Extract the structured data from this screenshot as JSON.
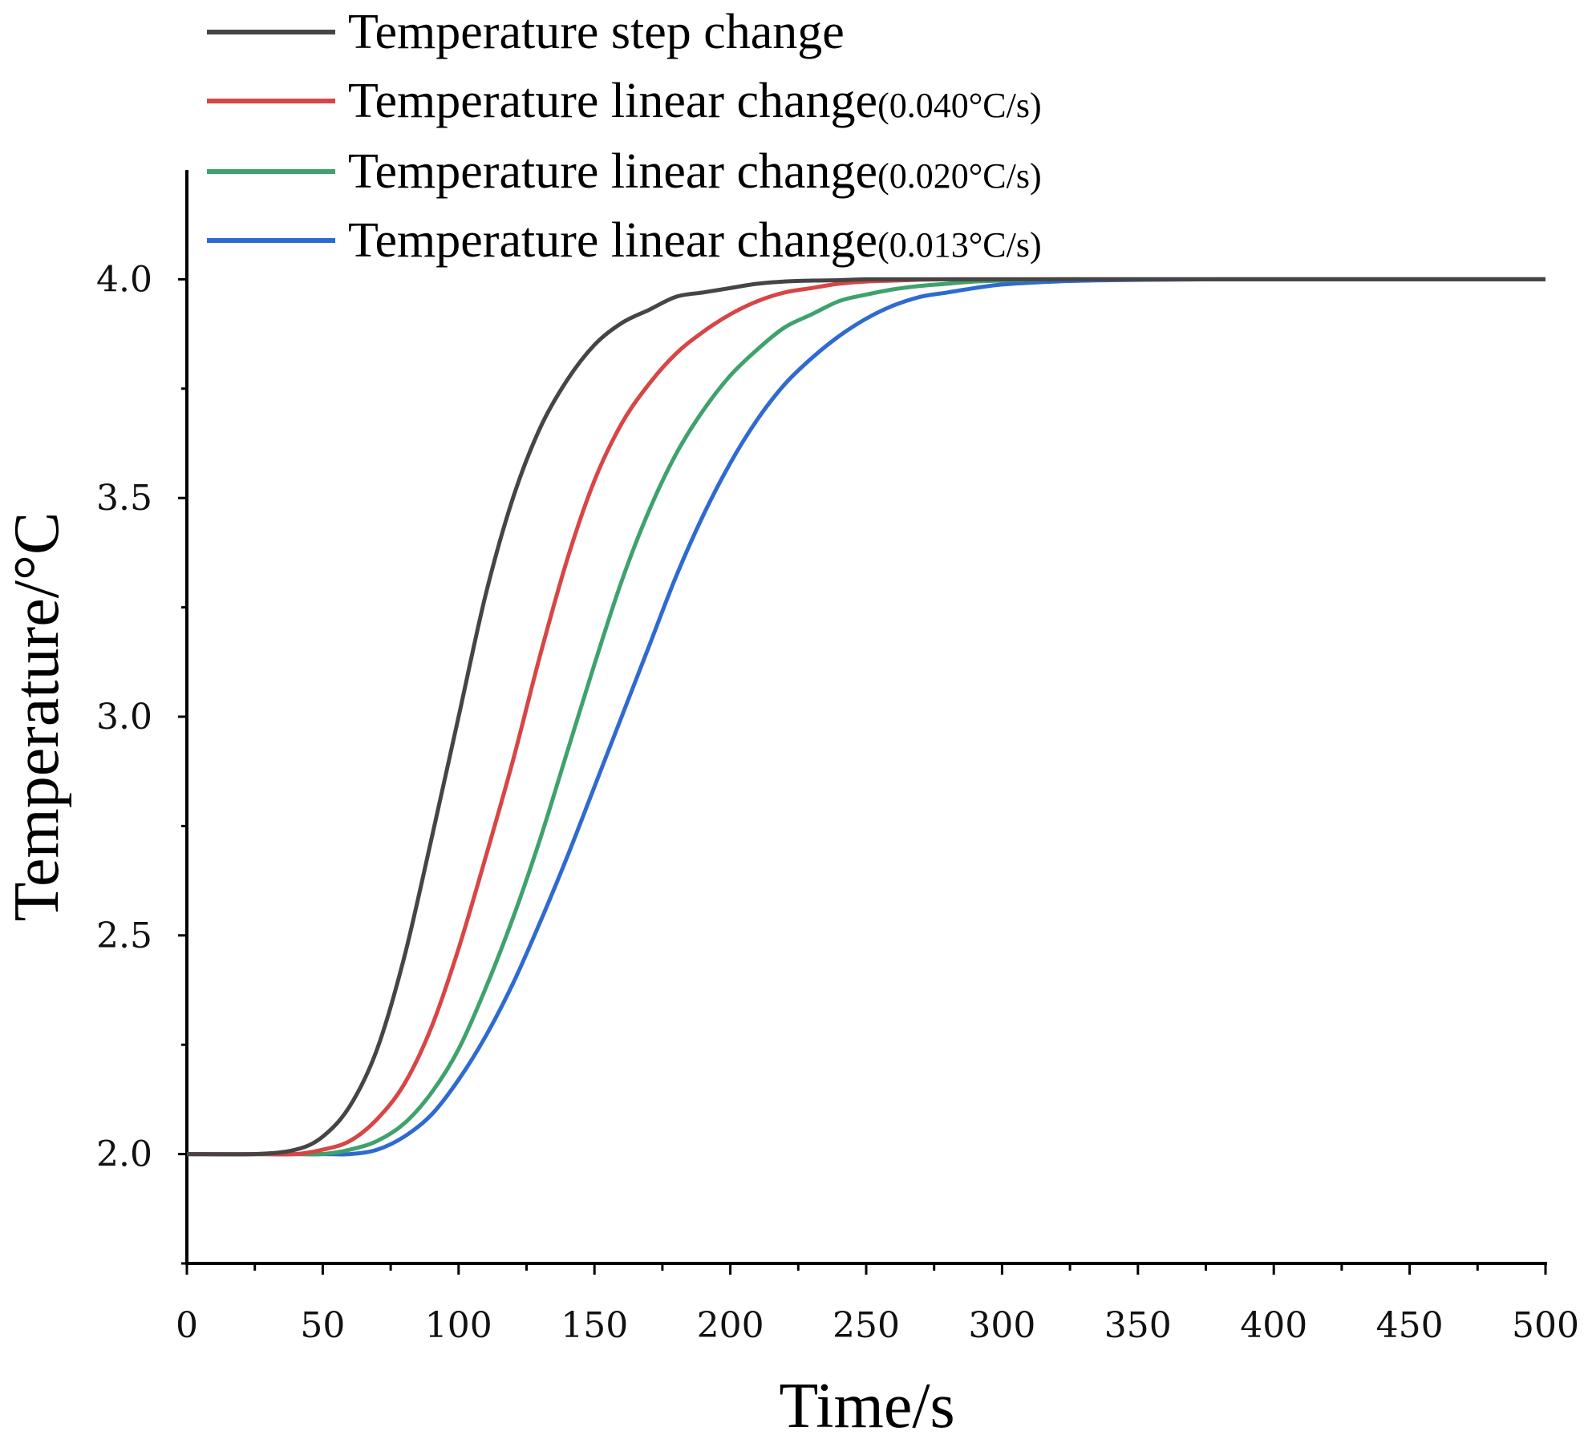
{
  "chart_data": {
    "type": "line",
    "title": "",
    "xlabel": "Time/s",
    "ylabel": "Temperature/°C",
    "xlim": [
      0,
      500
    ],
    "ylim": [
      1.75,
      4.25
    ],
    "x_ticks": [
      0,
      50,
      100,
      150,
      200,
      250,
      300,
      350,
      400,
      450,
      500
    ],
    "y_ticks": [
      2.0,
      2.5,
      3.0,
      3.5,
      4.0
    ],
    "x_tick_labels": [
      "0",
      "50",
      "100",
      "150",
      "200",
      "250",
      "300",
      "350",
      "400",
      "450",
      "500"
    ],
    "y_tick_labels": [
      "2.0",
      "2.5",
      "3.0",
      "3.5",
      "4.0"
    ],
    "grid": false,
    "legend_position": "top",
    "x": [
      0,
      25,
      40,
      50,
      60,
      70,
      80,
      90,
      100,
      110,
      120,
      130,
      140,
      150,
      160,
      170,
      180,
      190,
      200,
      210,
      220,
      230,
      240,
      250,
      260,
      270,
      280,
      290,
      300,
      320,
      340,
      360,
      380,
      400,
      450,
      500
    ],
    "series": [
      {
        "name": "Temperature step change",
        "rate": "",
        "color": "#454545",
        "values": [
          2.0,
          2.0,
          2.01,
          2.04,
          2.11,
          2.24,
          2.45,
          2.72,
          3.0,
          3.28,
          3.5,
          3.66,
          3.77,
          3.85,
          3.9,
          3.93,
          3.96,
          3.97,
          3.98,
          3.99,
          3.995,
          3.997,
          3.998,
          4.0,
          4.0,
          4.0,
          4.0,
          4.0,
          4.0,
          4.0,
          4.0,
          4.0,
          4.0,
          4.0,
          4.0,
          4.0
        ]
      },
      {
        "name": "Temperature linear change",
        "rate": "(0.040°C/s)",
        "color": "#d84545",
        "values": [
          2.0,
          2.0,
          2.0,
          2.01,
          2.03,
          2.08,
          2.16,
          2.29,
          2.47,
          2.68,
          2.9,
          3.14,
          3.36,
          3.54,
          3.67,
          3.76,
          3.83,
          3.88,
          3.92,
          3.95,
          3.97,
          3.98,
          3.99,
          3.995,
          3.997,
          3.999,
          4.0,
          4.0,
          4.0,
          4.0,
          4.0,
          4.0,
          4.0,
          4.0,
          4.0,
          4.0
        ]
      },
      {
        "name": "Temperature linear change",
        "rate": "(0.020°C/s)",
        "color": "#3fa26c",
        "values": [
          2.0,
          2.0,
          2.0,
          2.0,
          2.01,
          2.03,
          2.07,
          2.14,
          2.24,
          2.38,
          2.54,
          2.72,
          2.92,
          3.12,
          3.31,
          3.47,
          3.6,
          3.7,
          3.78,
          3.84,
          3.89,
          3.92,
          3.95,
          3.965,
          3.977,
          3.985,
          3.99,
          3.995,
          3.997,
          4.0,
          4.0,
          4.0,
          4.0,
          4.0,
          4.0,
          4.0
        ]
      },
      {
        "name": "Temperature linear change",
        "rate": "(0.013°C/s)",
        "color": "#2f6ad0",
        "values": [
          2.0,
          2.0,
          2.0,
          2.0,
          2.0,
          2.01,
          2.04,
          2.09,
          2.17,
          2.27,
          2.39,
          2.53,
          2.68,
          2.84,
          3.0,
          3.16,
          3.32,
          3.46,
          3.58,
          3.68,
          3.76,
          3.82,
          3.87,
          3.91,
          3.94,
          3.96,
          3.97,
          3.98,
          3.988,
          3.995,
          3.998,
          3.999,
          4.0,
          4.0,
          4.0,
          4.0
        ]
      }
    ]
  }
}
